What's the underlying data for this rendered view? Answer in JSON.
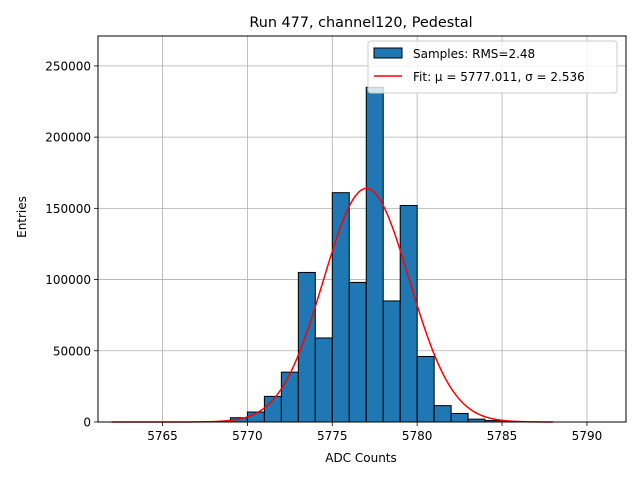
{
  "chart_data": {
    "type": "bar",
    "title": "Run 477, channel120, Pedestal",
    "xlabel": "ADC Counts",
    "ylabel": "Entries",
    "xlim": [
      5761.2,
      5792.3
    ],
    "ylim": [
      0,
      271000
    ],
    "xticks": [
      5765,
      5770,
      5775,
      5780,
      5785,
      5790
    ],
    "yticks": [
      0,
      50000,
      100000,
      150000,
      200000,
      250000
    ],
    "grid": true,
    "legend_position": "top-right",
    "bin_width": 1,
    "bins": [
      {
        "left": 5769,
        "count": 3000
      },
      {
        "left": 5770,
        "count": 7000
      },
      {
        "left": 5771,
        "count": 18000
      },
      {
        "left": 5772,
        "count": 35000
      },
      {
        "left": 5773,
        "count": 105000
      },
      {
        "left": 5774,
        "count": 59000
      },
      {
        "left": 5775,
        "count": 161000
      },
      {
        "left": 5776,
        "count": 98000
      },
      {
        "left": 5777,
        "count": 235000
      },
      {
        "left": 5778,
        "count": 85000
      },
      {
        "left": 5779,
        "count": 152000
      },
      {
        "left": 5780,
        "count": 46000
      },
      {
        "left": 5781,
        "count": 11500
      },
      {
        "left": 5782,
        "count": 6000
      },
      {
        "left": 5783,
        "count": 2000
      },
      {
        "left": 5784,
        "count": 1000
      },
      {
        "left": 5785,
        "count": 300
      }
    ],
    "fit": {
      "mu": 5777.011,
      "sigma": 2.536,
      "peak": 164000,
      "x_range": [
        5762,
        5788
      ]
    },
    "series": [
      {
        "name": "Samples: RMS=2.48",
        "color": "#1f77b4"
      },
      {
        "name": "Fit: μ = 5777.011, σ = 2.536",
        "color": "#ff0000"
      }
    ]
  },
  "colors": {
    "bar_fill": "#1f77b4",
    "bar_edge": "#000000",
    "fit_line": "#ff0000",
    "grid": "#b0b0b0"
  }
}
